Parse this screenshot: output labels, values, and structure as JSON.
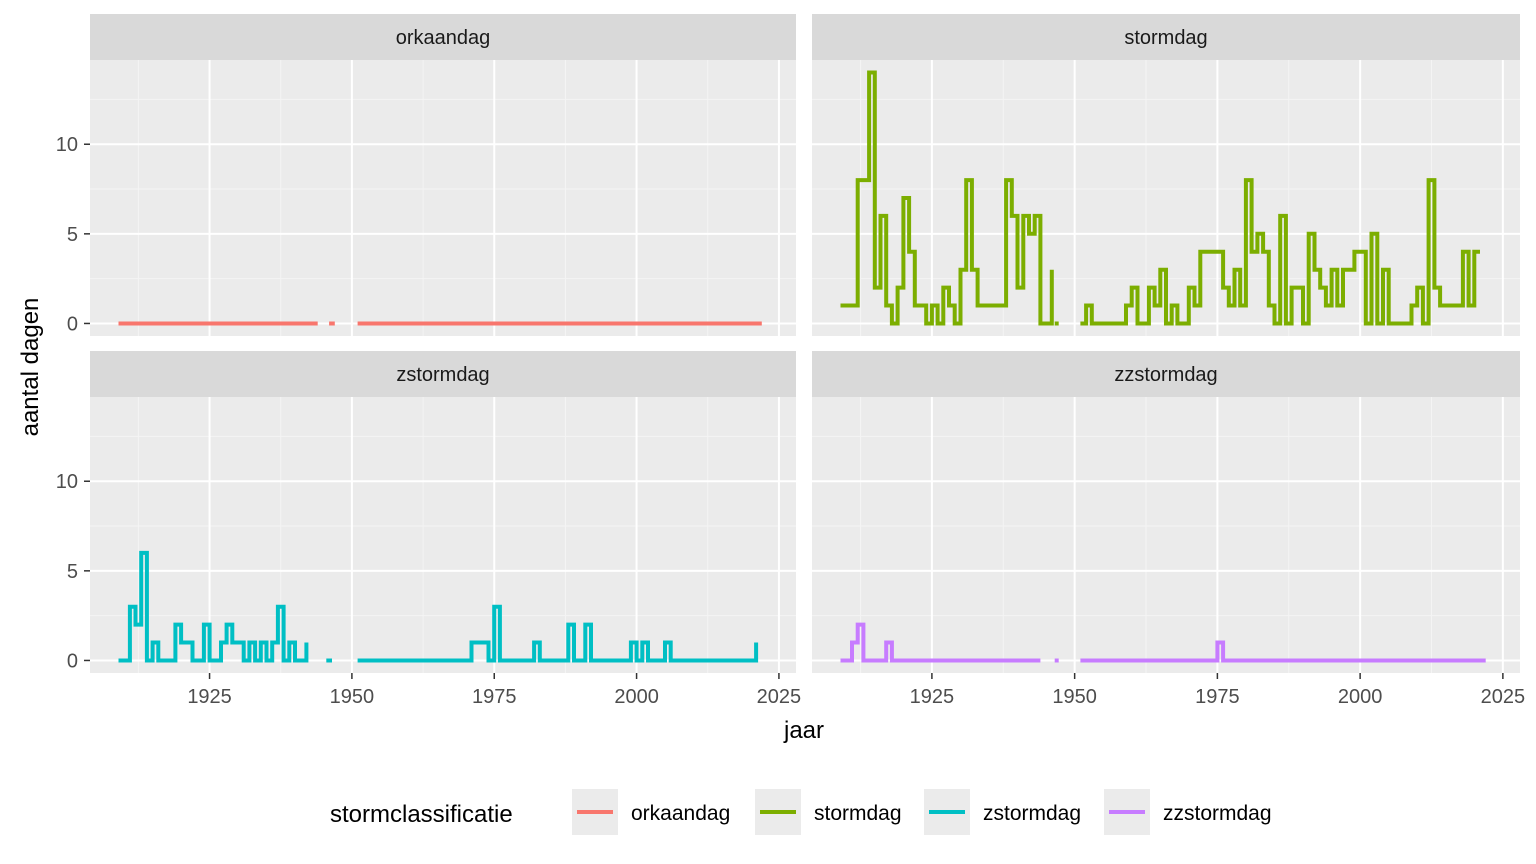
{
  "chart_data": {
    "type": "line",
    "step": true,
    "facets": [
      "orkaandag",
      "stormdag",
      "zstormdag",
      "zzstormdag"
    ],
    "xlabel": "jaar",
    "ylabel": "aantal dagen",
    "xlim": [
      1904,
      2028
    ],
    "ylim": [
      -0.7,
      14.7
    ],
    "x_breaks": [
      1925,
      1950,
      1975,
      2000,
      2025
    ],
    "y_breaks": [
      0,
      5,
      10
    ],
    "legend": {
      "title": "stormclassificatie",
      "position": "bottom"
    },
    "series": [
      {
        "name": "orkaandag",
        "color": "#F8766D",
        "segments": [
          [
            [
              1909,
              0
            ],
            [
              1944,
              0
            ]
          ],
          [
            [
              1946,
              0
            ],
            [
              1947,
              0
            ]
          ],
          [
            [
              1951,
              0
            ],
            [
              2022,
              0
            ]
          ]
        ]
      },
      {
        "name": "stormdag",
        "color": "#7CAE00",
        "segments": [
          [
            [
              1909,
              1
            ],
            [
              1910,
              1
            ],
            [
              1911,
              1
            ],
            [
              1912,
              8
            ],
            [
              1913,
              8
            ],
            [
              1914,
              14
            ],
            [
              1915,
              2
            ],
            [
              1916,
              6
            ],
            [
              1917,
              1
            ],
            [
              1918,
              0
            ],
            [
              1919,
              2
            ],
            [
              1920,
              7
            ],
            [
              1921,
              4
            ],
            [
              1922,
              1
            ],
            [
              1923,
              1
            ],
            [
              1924,
              0
            ],
            [
              1925,
              1
            ],
            [
              1926,
              0
            ],
            [
              1927,
              2
            ],
            [
              1928,
              1
            ],
            [
              1929,
              0
            ],
            [
              1930,
              3
            ],
            [
              1931,
              8
            ],
            [
              1932,
              3
            ],
            [
              1933,
              1
            ],
            [
              1934,
              1
            ],
            [
              1935,
              1
            ],
            [
              1936,
              1
            ],
            [
              1937,
              1
            ],
            [
              1938,
              8
            ],
            [
              1939,
              6
            ],
            [
              1940,
              2
            ],
            [
              1941,
              6
            ],
            [
              1942,
              5
            ],
            [
              1943,
              6
            ],
            [
              1944,
              0
            ],
            [
              1945,
              0
            ],
            [
              1946,
              3
            ]
          ],
          [
            [
              1946.5,
              0
            ],
            [
              1947.2,
              0
            ]
          ],
          [
            [
              1951,
              0
            ],
            [
              1952,
              1
            ],
            [
              1953,
              0
            ],
            [
              1954,
              0
            ],
            [
              1955,
              0
            ],
            [
              1956,
              0
            ],
            [
              1957,
              0
            ],
            [
              1958,
              0
            ],
            [
              1959,
              1
            ],
            [
              1960,
              2
            ],
            [
              1961,
              0
            ],
            [
              1962,
              0
            ],
            [
              1963,
              2
            ],
            [
              1964,
              1
            ],
            [
              1965,
              3
            ],
            [
              1966,
              0
            ],
            [
              1967,
              1
            ],
            [
              1968,
              0
            ],
            [
              1969,
              0
            ],
            [
              1970,
              2
            ],
            [
              1971,
              1
            ],
            [
              1972,
              4
            ],
            [
              1973,
              4
            ],
            [
              1974,
              4
            ],
            [
              1975,
              4
            ],
            [
              1976,
              2
            ],
            [
              1977,
              1
            ],
            [
              1978,
              3
            ],
            [
              1979,
              1
            ],
            [
              1980,
              8
            ],
            [
              1981,
              4
            ],
            [
              1982,
              5
            ],
            [
              1983,
              4
            ],
            [
              1984,
              1
            ],
            [
              1985,
              0
            ],
            [
              1986,
              6
            ],
            [
              1987,
              0
            ],
            [
              1988,
              2
            ],
            [
              1989,
              2
            ],
            [
              1990,
              0
            ],
            [
              1991,
              5
            ],
            [
              1992,
              3
            ],
            [
              1993,
              2
            ],
            [
              1994,
              1
            ],
            [
              1995,
              3
            ],
            [
              1996,
              1
            ],
            [
              1997,
              3
            ],
            [
              1998,
              3
            ],
            [
              1999,
              4
            ],
            [
              2000,
              4
            ],
            [
              2001,
              0
            ],
            [
              2002,
              5
            ],
            [
              2003,
              0
            ],
            [
              2004,
              3
            ],
            [
              2005,
              0
            ],
            [
              2006,
              0
            ],
            [
              2007,
              0
            ],
            [
              2008,
              0
            ],
            [
              2009,
              1
            ],
            [
              2010,
              2
            ],
            [
              2011,
              0
            ],
            [
              2012,
              8
            ],
            [
              2013,
              2
            ],
            [
              2014,
              1
            ],
            [
              2015,
              1
            ],
            [
              2016,
              1
            ],
            [
              2017,
              1
            ],
            [
              2018,
              4
            ],
            [
              2019,
              1
            ],
            [
              2020,
              4
            ],
            [
              2021,
              4
            ]
          ]
        ]
      },
      {
        "name": "zstormdag",
        "color": "#00BFC4",
        "segments": [
          [
            [
              1909,
              0
            ],
            [
              1910,
              0
            ],
            [
              1911,
              3
            ],
            [
              1912,
              2
            ],
            [
              1913,
              6
            ],
            [
              1914,
              0
            ],
            [
              1915,
              1
            ],
            [
              1916,
              0
            ],
            [
              1917,
              0
            ],
            [
              1918,
              0
            ],
            [
              1919,
              2
            ],
            [
              1920,
              1
            ],
            [
              1921,
              1
            ],
            [
              1922,
              0
            ],
            [
              1923,
              0
            ],
            [
              1924,
              2
            ],
            [
              1925,
              0
            ],
            [
              1926,
              0
            ],
            [
              1927,
              1
            ],
            [
              1928,
              2
            ],
            [
              1929,
              1
            ],
            [
              1930,
              1
            ],
            [
              1931,
              0
            ],
            [
              1932,
              1
            ],
            [
              1933,
              0
            ],
            [
              1934,
              1
            ],
            [
              1935,
              0
            ],
            [
              1936,
              1
            ],
            [
              1937,
              3
            ],
            [
              1938,
              0
            ],
            [
              1939,
              1
            ],
            [
              1940,
              0
            ],
            [
              1941,
              0
            ],
            [
              1942,
              1
            ]
          ],
          [
            [
              1945.5,
              0
            ],
            [
              1946.5,
              0
            ]
          ],
          [
            [
              1951,
              0
            ],
            [
              1960,
              0
            ],
            [
              1965,
              0
            ],
            [
              1970,
              0
            ],
            [
              1971,
              1
            ],
            [
              1972,
              1
            ],
            [
              1973,
              1
            ],
            [
              1974,
              0
            ],
            [
              1975,
              3
            ],
            [
              1976,
              0
            ],
            [
              1977,
              0
            ],
            [
              1978,
              0
            ],
            [
              1979,
              0
            ],
            [
              1980,
              0
            ],
            [
              1981,
              0
            ],
            [
              1982,
              1
            ],
            [
              1983,
              0
            ],
            [
              1984,
              0
            ],
            [
              1985,
              0
            ],
            [
              1986,
              0
            ],
            [
              1987,
              0
            ],
            [
              1988,
              2
            ],
            [
              1989,
              0
            ],
            [
              1990,
              0
            ],
            [
              1991,
              2
            ],
            [
              1992,
              0
            ],
            [
              1993,
              0
            ],
            [
              1994,
              0
            ],
            [
              1995,
              0
            ],
            [
              1996,
              0
            ],
            [
              1997,
              0
            ],
            [
              1998,
              0
            ],
            [
              1999,
              1
            ],
            [
              2000,
              0
            ],
            [
              2001,
              1
            ],
            [
              2002,
              0
            ],
            [
              2003,
              0
            ],
            [
              2004,
              0
            ],
            [
              2005,
              1
            ],
            [
              2006,
              0
            ],
            [
              2007,
              0
            ],
            [
              2008,
              0
            ],
            [
              2009,
              0
            ],
            [
              2010,
              0
            ],
            [
              2011,
              0
            ],
            [
              2012,
              0
            ],
            [
              2013,
              0
            ],
            [
              2014,
              0
            ],
            [
              2015,
              0
            ],
            [
              2016,
              0
            ],
            [
              2017,
              0
            ],
            [
              2018,
              0
            ],
            [
              2019,
              0
            ],
            [
              2020,
              0
            ],
            [
              2021,
              1
            ]
          ]
        ]
      },
      {
        "name": "zzstormdag",
        "color": "#C77CFF",
        "segments": [
          [
            [
              1909,
              0
            ],
            [
              1910,
              0
            ],
            [
              1911,
              1
            ],
            [
              1912,
              2
            ],
            [
              1913,
              0
            ],
            [
              1914,
              0
            ],
            [
              1915,
              0
            ],
            [
              1916,
              0
            ],
            [
              1917,
              1
            ],
            [
              1918,
              0
            ],
            [
              1919,
              0
            ],
            [
              1930,
              0
            ],
            [
              1943,
              0
            ],
            [
              1944,
              0
            ]
          ],
          [
            [
              1946.5,
              0
            ],
            [
              1947.2,
              0
            ]
          ],
          [
            [
              1951,
              0
            ],
            [
              1960,
              0
            ],
            [
              1970,
              0
            ],
            [
              1975,
              1
            ],
            [
              1976,
              0
            ],
            [
              1990,
              0
            ],
            [
              2000,
              0
            ],
            [
              2010,
              0
            ],
            [
              2022,
              0
            ]
          ]
        ]
      }
    ]
  }
}
